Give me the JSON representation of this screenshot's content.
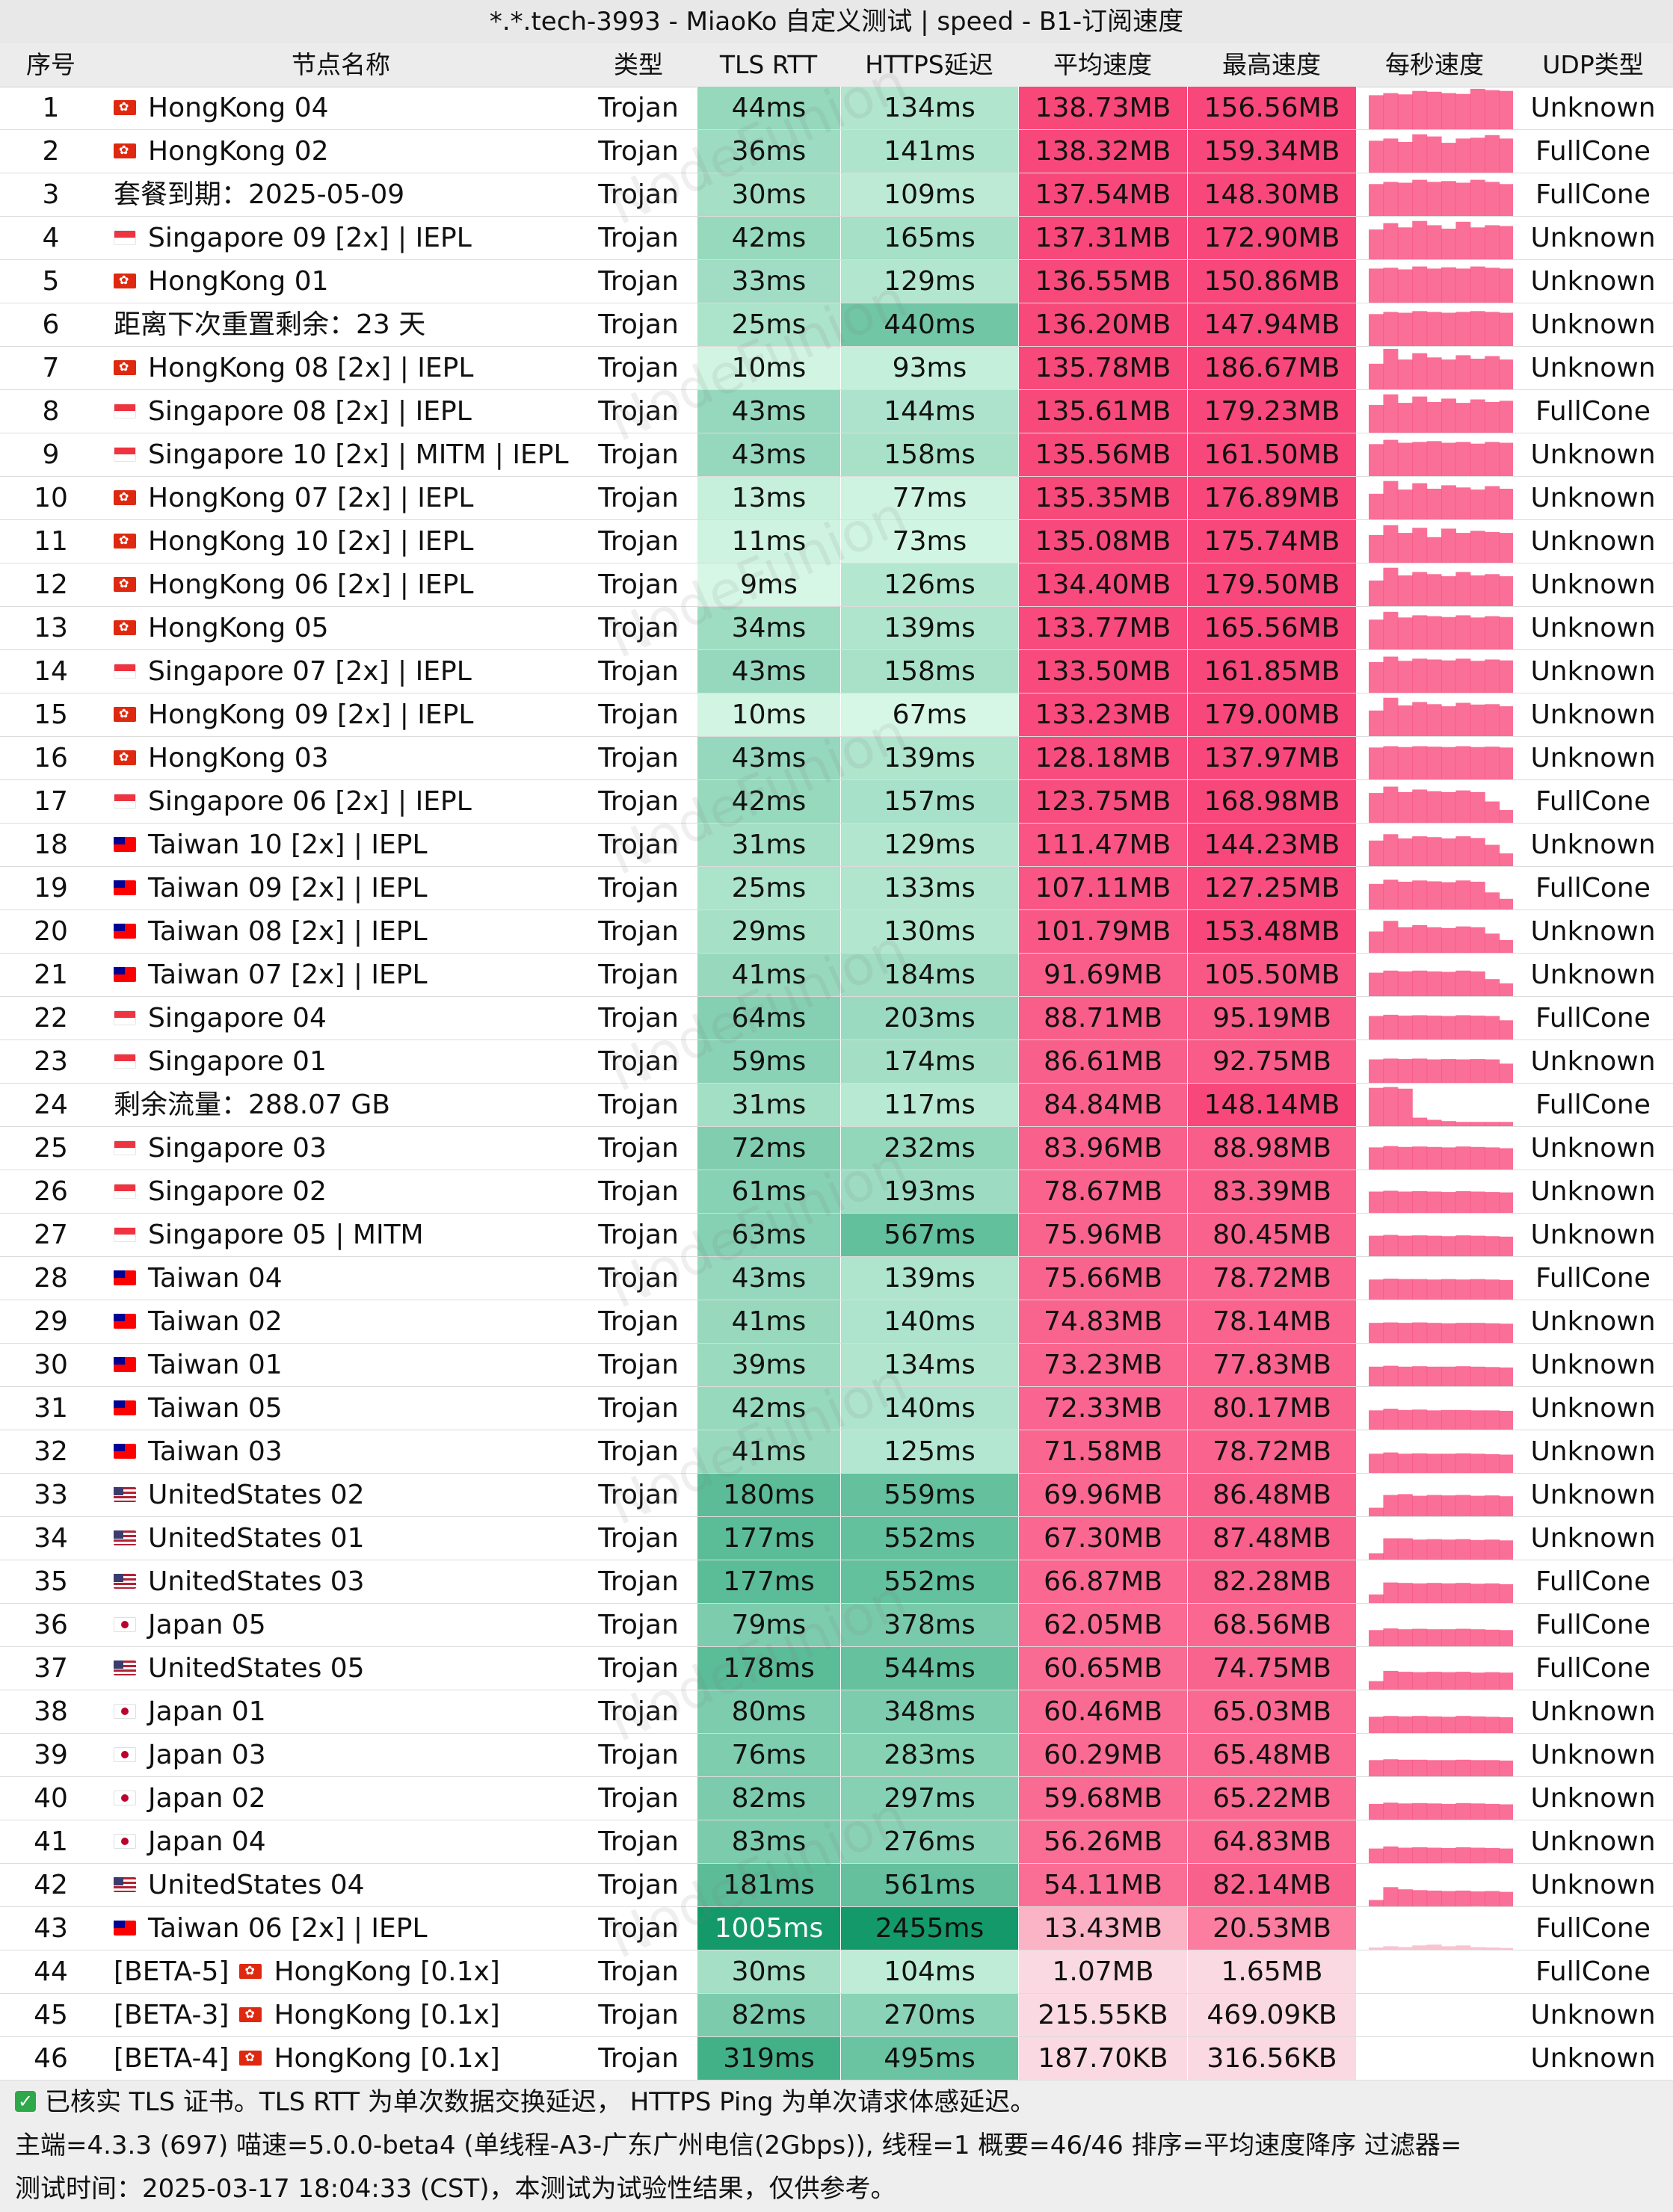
{
  "title": "*.*.tech-3993 - MiaoKo 自定义测试 | speed - B1-订阅速度",
  "headers": [
    "序号",
    "节点名称",
    "类型",
    "TLS RTT",
    "HTTPS延迟",
    "平均速度",
    "最高速度",
    "每秒速度",
    "UDP类型"
  ],
  "watermark": "NodeFunion",
  "rows": [
    {
      "i": "1",
      "flag": "hk",
      "name": "HongKong 04",
      "type": "Trojan",
      "tls": "44ms",
      "https": "134ms",
      "avg": "138.73MB",
      "max": "156.56MB",
      "udp": "Unknown",
      "spark": [
        0.8,
        0.85,
        0.82,
        0.9,
        0.88,
        0.85,
        0.83,
        0.95,
        0.92,
        0.9
      ]
    },
    {
      "i": "2",
      "flag": "hk",
      "name": "HongKong 02",
      "type": "Trojan",
      "tls": "36ms",
      "https": "141ms",
      "avg": "138.32MB",
      "max": "159.34MB",
      "udp": "FullCone",
      "spark": [
        0.75,
        0.8,
        0.72,
        0.9,
        0.85,
        0.7,
        0.8,
        0.82,
        0.88,
        0.8
      ]
    },
    {
      "i": "3",
      "flag": "",
      "name": "套餐到期：2025-05-09",
      "type": "Trojan",
      "tls": "30ms",
      "https": "109ms",
      "avg": "137.54MB",
      "max": "148.30MB",
      "udp": "FullCone",
      "spark": [
        0.75,
        0.8,
        0.78,
        0.85,
        0.8,
        0.82,
        0.78,
        0.85,
        0.8,
        0.75
      ]
    },
    {
      "i": "4",
      "flag": "sg",
      "name": "Singapore 09 [2x] | IEPL",
      "type": "Trojan",
      "tls": "42ms",
      "https": "165ms",
      "avg": "137.31MB",
      "max": "172.90MB",
      "udp": "Unknown",
      "spark": [
        0.7,
        0.85,
        0.75,
        0.9,
        0.8,
        0.72,
        0.88,
        0.75,
        0.8,
        0.78
      ]
    },
    {
      "i": "5",
      "flag": "hk",
      "name": "HongKong 01",
      "type": "Trojan",
      "tls": "33ms",
      "https": "129ms",
      "avg": "136.55MB",
      "max": "150.86MB",
      "udp": "Unknown",
      "spark": [
        0.8,
        0.82,
        0.78,
        0.85,
        0.8,
        0.83,
        0.8,
        0.85,
        0.82,
        0.8
      ]
    },
    {
      "i": "6",
      "flag": "",
      "name": "距离下次重置剩余：23 天",
      "type": "Trojan",
      "tls": "25ms",
      "https": "440ms",
      "avg": "136.20MB",
      "max": "147.94MB",
      "udp": "Unknown",
      "spark": [
        0.75,
        0.8,
        0.78,
        0.82,
        0.8,
        0.78,
        0.8,
        0.82,
        0.8,
        0.78
      ]
    },
    {
      "i": "7",
      "flag": "hk",
      "name": "HongKong 08 [2x] | IEPL",
      "type": "Trojan",
      "tls": "10ms",
      "https": "93ms",
      "avg": "135.78MB",
      "max": "186.67MB",
      "udp": "Unknown",
      "spark": [
        0.6,
        0.95,
        0.7,
        0.85,
        0.75,
        0.7,
        0.8,
        0.72,
        0.78,
        0.7
      ]
    },
    {
      "i": "8",
      "flag": "sg",
      "name": "Singapore 08 [2x] | IEPL",
      "type": "Trojan",
      "tls": "43ms",
      "https": "144ms",
      "avg": "135.61MB",
      "max": "179.23MB",
      "udp": "FullCone",
      "spark": [
        0.65,
        0.9,
        0.7,
        0.85,
        0.72,
        0.8,
        0.7,
        0.78,
        0.72,
        0.75
      ]
    },
    {
      "i": "9",
      "flag": "sg",
      "name": "Singapore 10 [2x] | MITM | IEPL",
      "type": "Trojan",
      "tls": "43ms",
      "https": "158ms",
      "avg": "135.56MB",
      "max": "161.50MB",
      "udp": "Unknown",
      "spark": [
        0.75,
        0.85,
        0.78,
        0.8,
        0.82,
        0.78,
        0.8,
        0.76,
        0.8,
        0.78
      ]
    },
    {
      "i": "10",
      "flag": "hk",
      "name": "HongKong 07 [2x] | IEPL",
      "type": "Trojan",
      "tls": "13ms",
      "https": "77ms",
      "avg": "135.35MB",
      "max": "176.89MB",
      "udp": "Unknown",
      "spark": [
        0.6,
        0.9,
        0.7,
        0.85,
        0.72,
        0.8,
        0.75,
        0.7,
        0.78,
        0.72
      ]
    },
    {
      "i": "11",
      "flag": "hk",
      "name": "HongKong 10 [2x] | IEPL",
      "type": "Trojan",
      "tls": "11ms",
      "https": "73ms",
      "avg": "135.08MB",
      "max": "175.74MB",
      "udp": "Unknown",
      "spark": [
        0.65,
        0.88,
        0.7,
        0.82,
        0.6,
        0.8,
        0.7,
        0.75,
        0.72,
        0.7
      ]
    },
    {
      "i": "12",
      "flag": "hk",
      "name": "HongKong 06 [2x] | IEPL",
      "type": "Trojan",
      "tls": "9ms",
      "https": "126ms",
      "avg": "134.40MB",
      "max": "179.50MB",
      "udp": "Unknown",
      "spark": [
        0.6,
        0.9,
        0.72,
        0.8,
        0.75,
        0.7,
        0.8,
        0.72,
        0.75,
        0.7
      ]
    },
    {
      "i": "13",
      "flag": "hk",
      "name": "HongKong 05",
      "type": "Trojan",
      "tls": "34ms",
      "https": "139ms",
      "avg": "133.77MB",
      "max": "165.56MB",
      "udp": "Unknown",
      "spark": [
        0.7,
        0.88,
        0.75,
        0.8,
        0.78,
        0.76,
        0.8,
        0.75,
        0.78,
        0.76
      ]
    },
    {
      "i": "14",
      "flag": "sg",
      "name": "Singapore 07 [2x] | IEPL",
      "type": "Trojan",
      "tls": "43ms",
      "https": "158ms",
      "avg": "133.50MB",
      "max": "161.85MB",
      "udp": "Unknown",
      "spark": [
        0.72,
        0.85,
        0.75,
        0.8,
        0.78,
        0.76,
        0.8,
        0.75,
        0.78,
        0.76
      ]
    },
    {
      "i": "15",
      "flag": "hk",
      "name": "HongKong 09 [2x] | IEPL",
      "type": "Trojan",
      "tls": "10ms",
      "https": "67ms",
      "avg": "133.23MB",
      "max": "179.00MB",
      "udp": "Unknown",
      "spark": [
        0.6,
        0.9,
        0.72,
        0.8,
        0.75,
        0.7,
        0.78,
        0.74,
        0.75,
        0.7
      ]
    },
    {
      "i": "16",
      "flag": "hk",
      "name": "HongKong 03",
      "type": "Trojan",
      "tls": "43ms",
      "https": "139ms",
      "avg": "128.18MB",
      "max": "137.97MB",
      "udp": "Unknown",
      "spark": [
        0.75,
        0.78,
        0.76,
        0.78,
        0.77,
        0.76,
        0.78,
        0.76,
        0.77,
        0.75
      ]
    },
    {
      "i": "17",
      "flag": "sg",
      "name": "Singapore 06 [2x] | IEPL",
      "type": "Trojan",
      "tls": "42ms",
      "https": "157ms",
      "avg": "123.75MB",
      "max": "168.98MB",
      "udp": "FullCone",
      "spark": [
        0.7,
        0.85,
        0.72,
        0.78,
        0.74,
        0.72,
        0.76,
        0.72,
        0.5,
        0.3
      ]
    },
    {
      "i": "18",
      "flag": "tw",
      "name": "Taiwan 10 [2x] | IEPL",
      "type": "Trojan",
      "tls": "31ms",
      "https": "129ms",
      "avg": "111.47MB",
      "max": "144.23MB",
      "udp": "Unknown",
      "spark": [
        0.6,
        0.75,
        0.65,
        0.7,
        0.68,
        0.65,
        0.7,
        0.66,
        0.5,
        0.3
      ]
    },
    {
      "i": "19",
      "flag": "tw",
      "name": "Taiwan 09 [2x] | IEPL",
      "type": "Trojan",
      "tls": "25ms",
      "https": "133ms",
      "avg": "107.11MB",
      "max": "127.25MB",
      "udp": "FullCone",
      "spark": [
        0.6,
        0.7,
        0.65,
        0.68,
        0.66,
        0.64,
        0.68,
        0.65,
        0.4,
        0.25
      ]
    },
    {
      "i": "20",
      "flag": "tw",
      "name": "Taiwan 08 [2x] | IEPL",
      "type": "Trojan",
      "tls": "29ms",
      "https": "130ms",
      "avg": "101.79MB",
      "max": "153.48MB",
      "udp": "Unknown",
      "spark": [
        0.5,
        0.75,
        0.6,
        0.65,
        0.6,
        0.58,
        0.62,
        0.6,
        0.45,
        0.3
      ]
    },
    {
      "i": "21",
      "flag": "tw",
      "name": "Taiwan 07 [2x] | IEPL",
      "type": "Trojan",
      "tls": "41ms",
      "https": "184ms",
      "avg": "91.69MB",
      "max": "105.50MB",
      "udp": "Unknown",
      "spark": [
        0.55,
        0.6,
        0.58,
        0.6,
        0.58,
        0.57,
        0.6,
        0.58,
        0.4,
        0.3
      ]
    },
    {
      "i": "22",
      "flag": "sg",
      "name": "Singapore 04",
      "type": "Trojan",
      "tls": "64ms",
      "https": "203ms",
      "avg": "88.71MB",
      "max": "95.19MB",
      "udp": "FullCone",
      "spark": [
        0.55,
        0.58,
        0.56,
        0.57,
        0.56,
        0.55,
        0.57,
        0.56,
        0.55,
        0.45
      ]
    },
    {
      "i": "23",
      "flag": "sg",
      "name": "Singapore 01",
      "type": "Trojan",
      "tls": "59ms",
      "https": "174ms",
      "avg": "86.61MB",
      "max": "92.75MB",
      "udp": "Unknown",
      "spark": [
        0.55,
        0.57,
        0.56,
        0.57,
        0.55,
        0.56,
        0.55,
        0.56,
        0.55,
        0.45
      ]
    },
    {
      "i": "24",
      "flag": "",
      "name": "剩余流量：288.07 GB",
      "type": "Trojan",
      "tls": "31ms",
      "https": "117ms",
      "avg": "84.84MB",
      "max": "148.14MB",
      "udp": "FullCone",
      "spark": [
        0.9,
        0.92,
        0.88,
        0.2,
        0.15,
        0.12,
        0.1,
        0.1,
        0.1,
        0.1
      ]
    },
    {
      "i": "25",
      "flag": "sg",
      "name": "Singapore 03",
      "type": "Trojan",
      "tls": "72ms",
      "https": "232ms",
      "avg": "83.96MB",
      "max": "88.98MB",
      "udp": "Unknown",
      "spark": [
        0.52,
        0.55,
        0.53,
        0.54,
        0.53,
        0.52,
        0.54,
        0.53,
        0.52,
        0.5
      ]
    },
    {
      "i": "26",
      "flag": "sg",
      "name": "Singapore 02",
      "type": "Trojan",
      "tls": "61ms",
      "https": "193ms",
      "avg": "78.67MB",
      "max": "83.39MB",
      "udp": "Unknown",
      "spark": [
        0.5,
        0.52,
        0.5,
        0.51,
        0.5,
        0.49,
        0.51,
        0.5,
        0.49,
        0.48
      ]
    },
    {
      "i": "27",
      "flag": "sg",
      "name": "Singapore 05 | MITM",
      "type": "Trojan",
      "tls": "63ms",
      "https": "567ms",
      "avg": "75.96MB",
      "max": "80.45MB",
      "udp": "Unknown",
      "spark": [
        0.48,
        0.5,
        0.48,
        0.49,
        0.48,
        0.47,
        0.49,
        0.48,
        0.47,
        0.46
      ]
    },
    {
      "i": "28",
      "flag": "tw",
      "name": "Taiwan 04",
      "type": "Trojan",
      "tls": "43ms",
      "https": "139ms",
      "avg": "75.66MB",
      "max": "78.72MB",
      "udp": "FullCone",
      "spark": [
        0.47,
        0.49,
        0.48,
        0.48,
        0.47,
        0.48,
        0.47,
        0.48,
        0.47,
        0.46
      ]
    },
    {
      "i": "29",
      "flag": "tw",
      "name": "Taiwan 02",
      "type": "Trojan",
      "tls": "41ms",
      "https": "140ms",
      "avg": "74.83MB",
      "max": "78.14MB",
      "udp": "Unknown",
      "spark": [
        0.47,
        0.48,
        0.47,
        0.48,
        0.47,
        0.46,
        0.47,
        0.47,
        0.46,
        0.45
      ]
    },
    {
      "i": "30",
      "flag": "tw",
      "name": "Taiwan 01",
      "type": "Trojan",
      "tls": "39ms",
      "https": "134ms",
      "avg": "73.23MB",
      "max": "77.83MB",
      "udp": "Unknown",
      "spark": [
        0.46,
        0.48,
        0.46,
        0.47,
        0.46,
        0.46,
        0.47,
        0.46,
        0.45,
        0.44
      ]
    },
    {
      "i": "31",
      "flag": "tw",
      "name": "Taiwan 05",
      "type": "Trojan",
      "tls": "42ms",
      "https": "140ms",
      "avg": "72.33MB",
      "max": "80.17MB",
      "udp": "Unknown",
      "spark": [
        0.45,
        0.49,
        0.46,
        0.47,
        0.45,
        0.46,
        0.46,
        0.45,
        0.45,
        0.44
      ]
    },
    {
      "i": "32",
      "flag": "tw",
      "name": "Taiwan 03",
      "type": "Trojan",
      "tls": "41ms",
      "https": "125ms",
      "avg": "71.58MB",
      "max": "78.72MB",
      "udp": "Unknown",
      "spark": [
        0.45,
        0.48,
        0.45,
        0.46,
        0.45,
        0.45,
        0.46,
        0.45,
        0.44,
        0.43
      ]
    },
    {
      "i": "33",
      "flag": "us",
      "name": "UnitedStates 02",
      "type": "Trojan",
      "tls": "180ms",
      "https": "559ms",
      "avg": "69.96MB",
      "max": "86.48MB",
      "udp": "Unknown",
      "spark": [
        0.2,
        0.5,
        0.52,
        0.48,
        0.5,
        0.49,
        0.5,
        0.48,
        0.49,
        0.47
      ]
    },
    {
      "i": "34",
      "flag": "us",
      "name": "UnitedStates 01",
      "type": "Trojan",
      "tls": "177ms",
      "https": "552ms",
      "avg": "67.30MB",
      "max": "87.48MB",
      "udp": "Unknown",
      "spark": [
        0.15,
        0.5,
        0.5,
        0.47,
        0.48,
        0.47,
        0.48,
        0.46,
        0.47,
        0.45
      ]
    },
    {
      "i": "35",
      "flag": "us",
      "name": "UnitedStates 03",
      "type": "Trojan",
      "tls": "177ms",
      "https": "552ms",
      "avg": "66.87MB",
      "max": "82.28MB",
      "udp": "FullCone",
      "spark": [
        0.2,
        0.48,
        0.47,
        0.46,
        0.47,
        0.46,
        0.47,
        0.45,
        0.46,
        0.44
      ]
    },
    {
      "i": "36",
      "flag": "jp",
      "name": "Japan 05",
      "type": "Trojan",
      "tls": "79ms",
      "https": "378ms",
      "avg": "62.05MB",
      "max": "68.56MB",
      "udp": "FullCone",
      "spark": [
        0.38,
        0.42,
        0.4,
        0.41,
        0.4,
        0.4,
        0.41,
        0.4,
        0.39,
        0.38
      ]
    },
    {
      "i": "37",
      "flag": "us",
      "name": "UnitedStates 05",
      "type": "Trojan",
      "tls": "178ms",
      "https": "544ms",
      "avg": "60.65MB",
      "max": "74.75MB",
      "udp": "FullCone",
      "spark": [
        0.2,
        0.44,
        0.42,
        0.41,
        0.42,
        0.41,
        0.42,
        0.4,
        0.41,
        0.4
      ]
    },
    {
      "i": "38",
      "flag": "jp",
      "name": "Japan 01",
      "type": "Trojan",
      "tls": "80ms",
      "https": "348ms",
      "avg": "60.46MB",
      "max": "65.03MB",
      "udp": "Unknown",
      "spark": [
        0.38,
        0.4,
        0.39,
        0.4,
        0.39,
        0.38,
        0.4,
        0.39,
        0.38,
        0.37
      ]
    },
    {
      "i": "39",
      "flag": "jp",
      "name": "Japan 03",
      "type": "Trojan",
      "tls": "76ms",
      "https": "283ms",
      "avg": "60.29MB",
      "max": "65.48MB",
      "udp": "Unknown",
      "spark": [
        0.38,
        0.4,
        0.39,
        0.39,
        0.38,
        0.38,
        0.39,
        0.38,
        0.38,
        0.37
      ]
    },
    {
      "i": "40",
      "flag": "jp",
      "name": "Japan 02",
      "type": "Trojan",
      "tls": "82ms",
      "https": "297ms",
      "avg": "59.68MB",
      "max": "65.22MB",
      "udp": "Unknown",
      "spark": [
        0.37,
        0.4,
        0.38,
        0.39,
        0.38,
        0.37,
        0.39,
        0.38,
        0.37,
        0.36
      ]
    },
    {
      "i": "41",
      "flag": "jp",
      "name": "Japan 04",
      "type": "Trojan",
      "tls": "83ms",
      "https": "276ms",
      "avg": "56.26MB",
      "max": "64.83MB",
      "udp": "Unknown",
      "spark": [
        0.34,
        0.39,
        0.36,
        0.37,
        0.36,
        0.35,
        0.37,
        0.36,
        0.35,
        0.34
      ]
    },
    {
      "i": "42",
      "flag": "us",
      "name": "UnitedStates 04",
      "type": "Trojan",
      "tls": "181ms",
      "https": "561ms",
      "avg": "54.11MB",
      "max": "82.14MB",
      "udp": "Unknown",
      "spark": [
        0.15,
        0.45,
        0.4,
        0.38,
        0.37,
        0.36,
        0.37,
        0.35,
        0.36,
        0.34
      ]
    },
    {
      "i": "43",
      "flag": "tw",
      "name": "Taiwan 06 [2x] | IEPL",
      "type": "Trojan",
      "tls": "1005ms",
      "https": "2455ms",
      "avg": "13.43MB",
      "max": "20.53MB",
      "udp": "FullCone",
      "spark": [
        0.05,
        0.08,
        0.06,
        0.1,
        0.12,
        0.08,
        0.1,
        0.06,
        0.05,
        0.04
      ]
    },
    {
      "i": "44",
      "flag": "",
      "prefix": "[BETA-5]",
      "flag2": "hk",
      "name": "HongKong [0.1x]",
      "type": "Trojan",
      "tls": "30ms",
      "https": "104ms",
      "avg": "1.07MB",
      "max": "1.65MB",
      "udp": "FullCone",
      "spark": [
        0,
        0,
        0,
        0,
        0,
        0,
        0,
        0,
        0,
        0
      ]
    },
    {
      "i": "45",
      "flag": "",
      "prefix": "[BETA-3]",
      "flag2": "hk",
      "name": "HongKong [0.1x]",
      "type": "Trojan",
      "tls": "82ms",
      "https": "270ms",
      "avg": "215.55KB",
      "max": "469.09KB",
      "udp": "Unknown",
      "spark": [
        0,
        0,
        0,
        0,
        0,
        0,
        0,
        0,
        0,
        0
      ]
    },
    {
      "i": "46",
      "flag": "",
      "prefix": "[BETA-4]",
      "flag2": "hk",
      "name": "HongKong [0.1x]",
      "type": "Trojan",
      "tls": "319ms",
      "https": "495ms",
      "avg": "187.70KB",
      "max": "316.56KB",
      "udp": "Unknown",
      "spark": [
        0,
        0,
        0,
        0,
        0,
        0,
        0,
        0,
        0,
        0
      ]
    }
  ],
  "footer": {
    "line1": "已核实 TLS 证书。TLS RTT 为单次数据交换延迟， HTTPS Ping 为单次请求体感延迟。",
    "line2": "主端=4.3.3 (697) 喵速=5.0.0-beta4 (单线程-A3-广东广州电信(2Gbps)), 线程=1 概要=46/46 排序=平均速度降序 过滤器=",
    "line3": "测试时间：2025-03-17 18:04:33 (CST)，本测试为试验性结果，仅供参考。"
  },
  "colors": {
    "green_light": "#d6f7e6",
    "green_dark": "#149a6a",
    "pink": "#f8477a",
    "pink_light": "#fbd9e2"
  }
}
